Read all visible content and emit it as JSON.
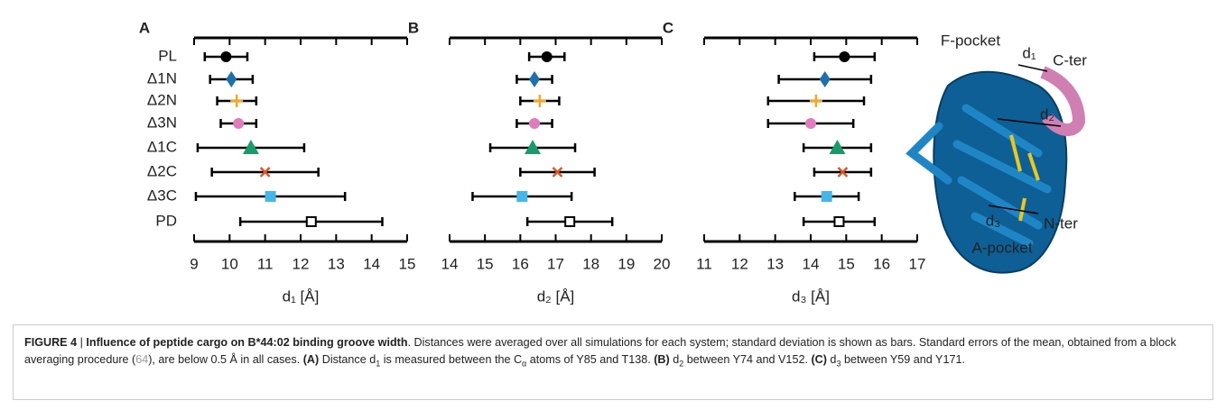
{
  "chart_data": [
    {
      "type": "errorbar",
      "panel": "A",
      "xlabel": "d₁ [Å]",
      "categories": [
        "PL",
        "Δ1N",
        "Δ2N",
        "Δ3N",
        "Δ1C",
        "Δ2C",
        "Δ3C",
        "PD"
      ],
      "values": [
        9.9,
        10.05,
        10.2,
        10.25,
        10.6,
        11.0,
        11.15,
        12.3
      ],
      "errors": [
        0.6,
        0.6,
        0.55,
        0.5,
        1.5,
        1.5,
        2.1,
        2.0
      ],
      "xlim": [
        9,
        15
      ],
      "xticks": [
        9,
        10,
        11,
        12,
        13,
        14,
        15
      ]
    },
    {
      "type": "errorbar",
      "panel": "B",
      "xlabel": "d₂ [Å]",
      "values": [
        16.75,
        16.4,
        16.55,
        16.4,
        16.35,
        17.05,
        16.05,
        17.4
      ],
      "errors": [
        0.5,
        0.5,
        0.55,
        0.5,
        1.2,
        1.05,
        1.4,
        1.2
      ],
      "xlim": [
        14,
        20
      ],
      "xticks": [
        14,
        15,
        16,
        17,
        18,
        19,
        20
      ]
    },
    {
      "type": "errorbar",
      "panel": "C",
      "xlabel": "d₃ [Å]",
      "values": [
        14.95,
        14.4,
        14.15,
        14.0,
        14.75,
        14.9,
        14.45,
        14.8
      ],
      "errors": [
        0.85,
        1.3,
        1.35,
        1.2,
        0.95,
        0.8,
        0.9,
        1.0
      ],
      "xlim": [
        11,
        17
      ],
      "xticks": [
        11,
        12,
        13,
        14,
        15,
        16,
        17
      ]
    }
  ],
  "markers": [
    "circle",
    "diamond",
    "plus",
    "circle",
    "triangle",
    "cross",
    "square",
    "open-square"
  ],
  "colors": [
    "#000000",
    "#1f6fad",
    "#f5a623",
    "#e07bbd",
    "#1a9a6c",
    "#d9572b",
    "#45b6ea",
    "#000000"
  ],
  "structure": {
    "labels": [
      "F-pocket",
      "d₁",
      "C-ter",
      "d₂",
      "d₃",
      "N-ter",
      "A-pocket"
    ]
  },
  "caption": {
    "runs": [
      "FIGURE 4",
      " | ",
      "Influence of peptide cargo on B*44:02 binding groove width",
      ". Distances were averaged over all simulations for each system; standard deviation is shown as bars. Standard errors of the mean, obtained from a block averaging procedure (",
      "64",
      "), are below 0.5 Å in all cases. ",
      "(A)",
      " Distance d",
      "1",
      " is measured between the C",
      "α",
      " atoms of Y85 and T138. ",
      "(B)",
      " d",
      "2",
      " between Y74 and V152. ",
      "(C)",
      " d",
      "3",
      " between Y59 and Y171."
    ]
  }
}
